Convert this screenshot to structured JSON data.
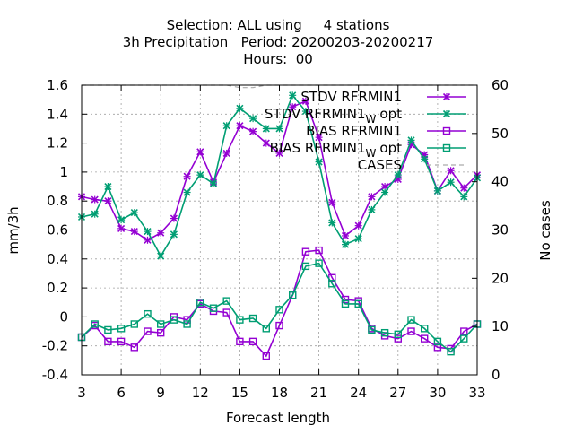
{
  "chart_data": {
    "type": "line",
    "title_lines": [
      "Selection: ALL using     4 stations",
      "3h Precipitation   Period: 20200203-20200217",
      "Hours:  00"
    ],
    "xlabel": "Forecast length",
    "ylabel": "mm/3h",
    "y2label": "No cases",
    "xlim": [
      3,
      33
    ],
    "ylim": [
      -0.4,
      1.6
    ],
    "y2lim": [
      0,
      60
    ],
    "xticks": [
      3,
      6,
      9,
      12,
      15,
      18,
      21,
      24,
      27,
      30,
      33
    ],
    "yticks": [
      -0.4,
      -0.2,
      0,
      0.2,
      0.4,
      0.6,
      0.8,
      1,
      1.2,
      1.4,
      1.6
    ],
    "yticklabels": [
      "-0.4",
      "-0.2",
      "0",
      "0.2",
      "0.4",
      "0.6",
      "0.8",
      "1",
      "1.2",
      "1.4",
      "1.6"
    ],
    "y2ticks": [
      0,
      10,
      20,
      30,
      40,
      50,
      60
    ],
    "grid": true,
    "legend_position": "top-right",
    "x": [
      3,
      4,
      5,
      6,
      7,
      8,
      9,
      10,
      11,
      12,
      13,
      14,
      15,
      16,
      17,
      18,
      19,
      20,
      21,
      22,
      23,
      24,
      25,
      26,
      27,
      28,
      29,
      30,
      31,
      32,
      33
    ],
    "series": [
      {
        "name": "STDV RFRMIN1",
        "color": "#9400d3",
        "marker": "x",
        "axis": "y",
        "values": [
          0.83,
          0.81,
          0.8,
          0.61,
          0.59,
          0.53,
          0.58,
          0.68,
          0.97,
          1.14,
          0.93,
          1.13,
          1.32,
          1.28,
          1.2,
          1.13,
          1.45,
          1.49,
          1.24,
          0.79,
          0.56,
          0.63,
          0.83,
          0.9,
          0.95,
          1.19,
          1.12,
          0.87,
          1.01,
          0.89,
          0.98
        ]
      },
      {
        "name": "STDV RFRMIN1",
        "name_sub": "W",
        "name_suffix": "opt",
        "color": "#009e73",
        "marker": "x",
        "axis": "y",
        "values": [
          0.69,
          0.71,
          0.9,
          0.67,
          0.72,
          0.59,
          0.42,
          0.57,
          0.86,
          0.98,
          0.92,
          1.32,
          1.44,
          1.37,
          1.3,
          1.3,
          1.53,
          1.42,
          1.07,
          0.65,
          0.5,
          0.54,
          0.74,
          0.86,
          0.98,
          1.22,
          1.09,
          0.87,
          0.93,
          0.83,
          0.96
        ]
      },
      {
        "name": "BIAS RFRMIN1",
        "color": "#9400d3",
        "marker": "square",
        "axis": "y",
        "values": [
          -0.14,
          -0.06,
          -0.17,
          -0.17,
          -0.21,
          -0.1,
          -0.11,
          0.0,
          -0.02,
          0.09,
          0.04,
          0.03,
          -0.17,
          -0.17,
          -0.27,
          -0.06,
          0.15,
          0.45,
          0.46,
          0.27,
          0.12,
          0.11,
          -0.08,
          -0.13,
          -0.15,
          -0.1,
          -0.15,
          -0.21,
          -0.22,
          -0.1,
          -0.05
        ]
      },
      {
        "name": "BIAS RFRMIN1",
        "name_sub": "W",
        "name_suffix": "opt",
        "color": "#009e73",
        "marker": "square",
        "axis": "y",
        "values": [
          -0.14,
          -0.05,
          -0.09,
          -0.08,
          -0.05,
          0.02,
          -0.05,
          -0.02,
          -0.05,
          0.1,
          0.06,
          0.11,
          -0.02,
          -0.01,
          -0.08,
          0.05,
          0.15,
          0.35,
          0.37,
          0.23,
          0.09,
          0.09,
          -0.09,
          -0.11,
          -0.12,
          -0.02,
          -0.08,
          -0.17,
          -0.24,
          -0.15,
          -0.05
        ]
      },
      {
        "name": "CASES",
        "color": "#aaaaaa",
        "marker": "none",
        "dashed": true,
        "axis": "y2",
        "values": [
          60,
          60,
          60,
          60,
          60,
          60,
          60,
          60,
          60,
          60,
          60,
          60,
          59.5,
          59.5,
          60,
          60,
          60,
          60,
          60,
          60,
          60,
          60,
          60,
          60,
          60,
          60,
          60,
          60,
          60,
          60,
          60
        ]
      }
    ]
  }
}
